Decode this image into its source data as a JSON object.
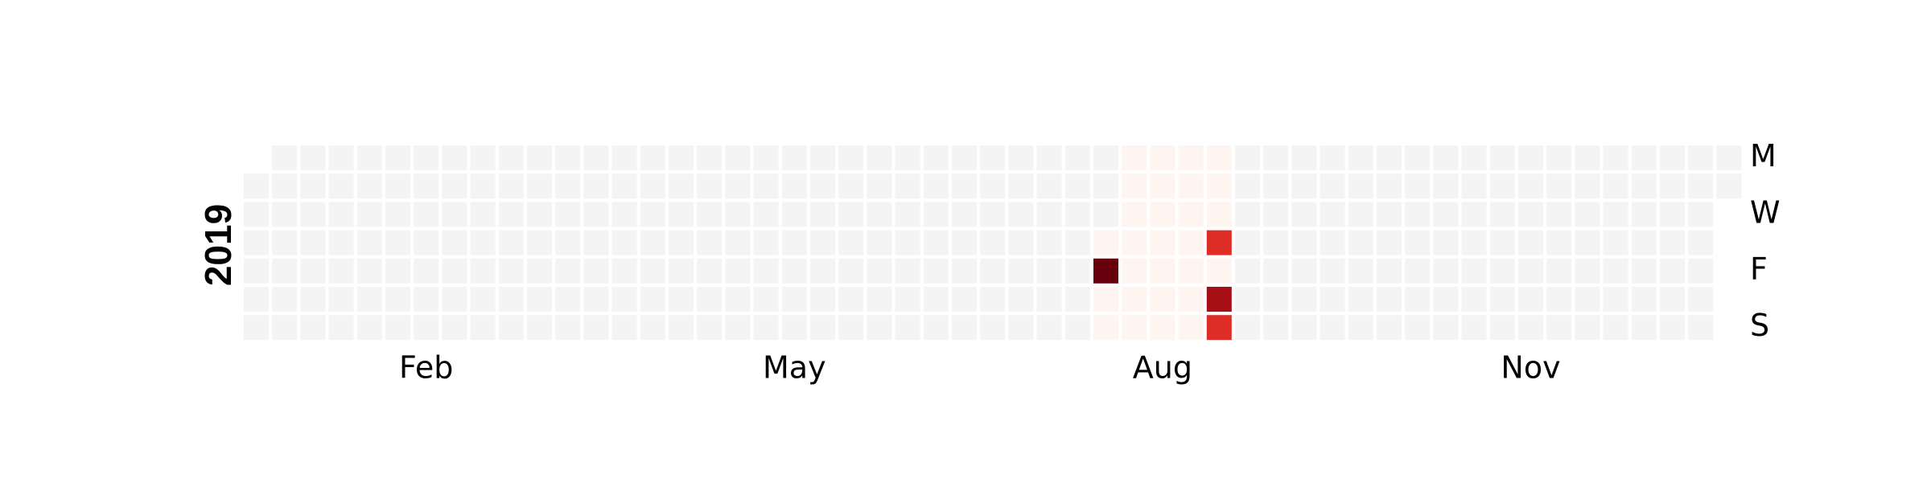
{
  "chart_data": {
    "type": "heatmap",
    "title": "",
    "year_label": "2019",
    "x_tick_labels": [
      "Feb",
      "May",
      "Aug",
      "Nov"
    ],
    "y_tick_labels": [
      "M",
      "W",
      "F",
      "S"
    ],
    "empty_color": "#f4f4f4",
    "colormap": [
      "#fff5f0",
      "#fee0d2",
      "#fc9272",
      "#de2d26",
      "#a50f15",
      "#67000d"
    ],
    "grid": false,
    "days": [
      {
        "date": "2019-08-01",
        "value": 1
      },
      {
        "date": "2019-08-02",
        "value": 10
      },
      {
        "date": "2019-08-03",
        "value": 1
      },
      {
        "date": "2019-08-04",
        "value": 1
      },
      {
        "date": "2019-08-05",
        "value": 1
      },
      {
        "date": "2019-08-06",
        "value": 1
      },
      {
        "date": "2019-08-07",
        "value": 1
      },
      {
        "date": "2019-08-08",
        "value": 1
      },
      {
        "date": "2019-08-09",
        "value": 1
      },
      {
        "date": "2019-08-10",
        "value": 1
      },
      {
        "date": "2019-08-11",
        "value": 1
      },
      {
        "date": "2019-08-12",
        "value": 1
      },
      {
        "date": "2019-08-13",
        "value": 1
      },
      {
        "date": "2019-08-14",
        "value": 1
      },
      {
        "date": "2019-08-15",
        "value": 1
      },
      {
        "date": "2019-08-16",
        "value": 1
      },
      {
        "date": "2019-08-17",
        "value": 1
      },
      {
        "date": "2019-08-18",
        "value": 1
      },
      {
        "date": "2019-08-19",
        "value": 1
      },
      {
        "date": "2019-08-20",
        "value": 1
      },
      {
        "date": "2019-08-21",
        "value": 1
      },
      {
        "date": "2019-08-22",
        "value": 1
      },
      {
        "date": "2019-08-23",
        "value": 1
      },
      {
        "date": "2019-08-24",
        "value": 1
      },
      {
        "date": "2019-08-25",
        "value": 1
      },
      {
        "date": "2019-08-26",
        "value": 1
      },
      {
        "date": "2019-08-27",
        "value": 1
      },
      {
        "date": "2019-08-28",
        "value": 1
      },
      {
        "date": "2019-08-29",
        "value": 6
      },
      {
        "date": "2019-08-30",
        "value": 1
      },
      {
        "date": "2019-08-31",
        "value": 9
      },
      {
        "date": "2019-09-01",
        "value": 6
      }
    ]
  }
}
